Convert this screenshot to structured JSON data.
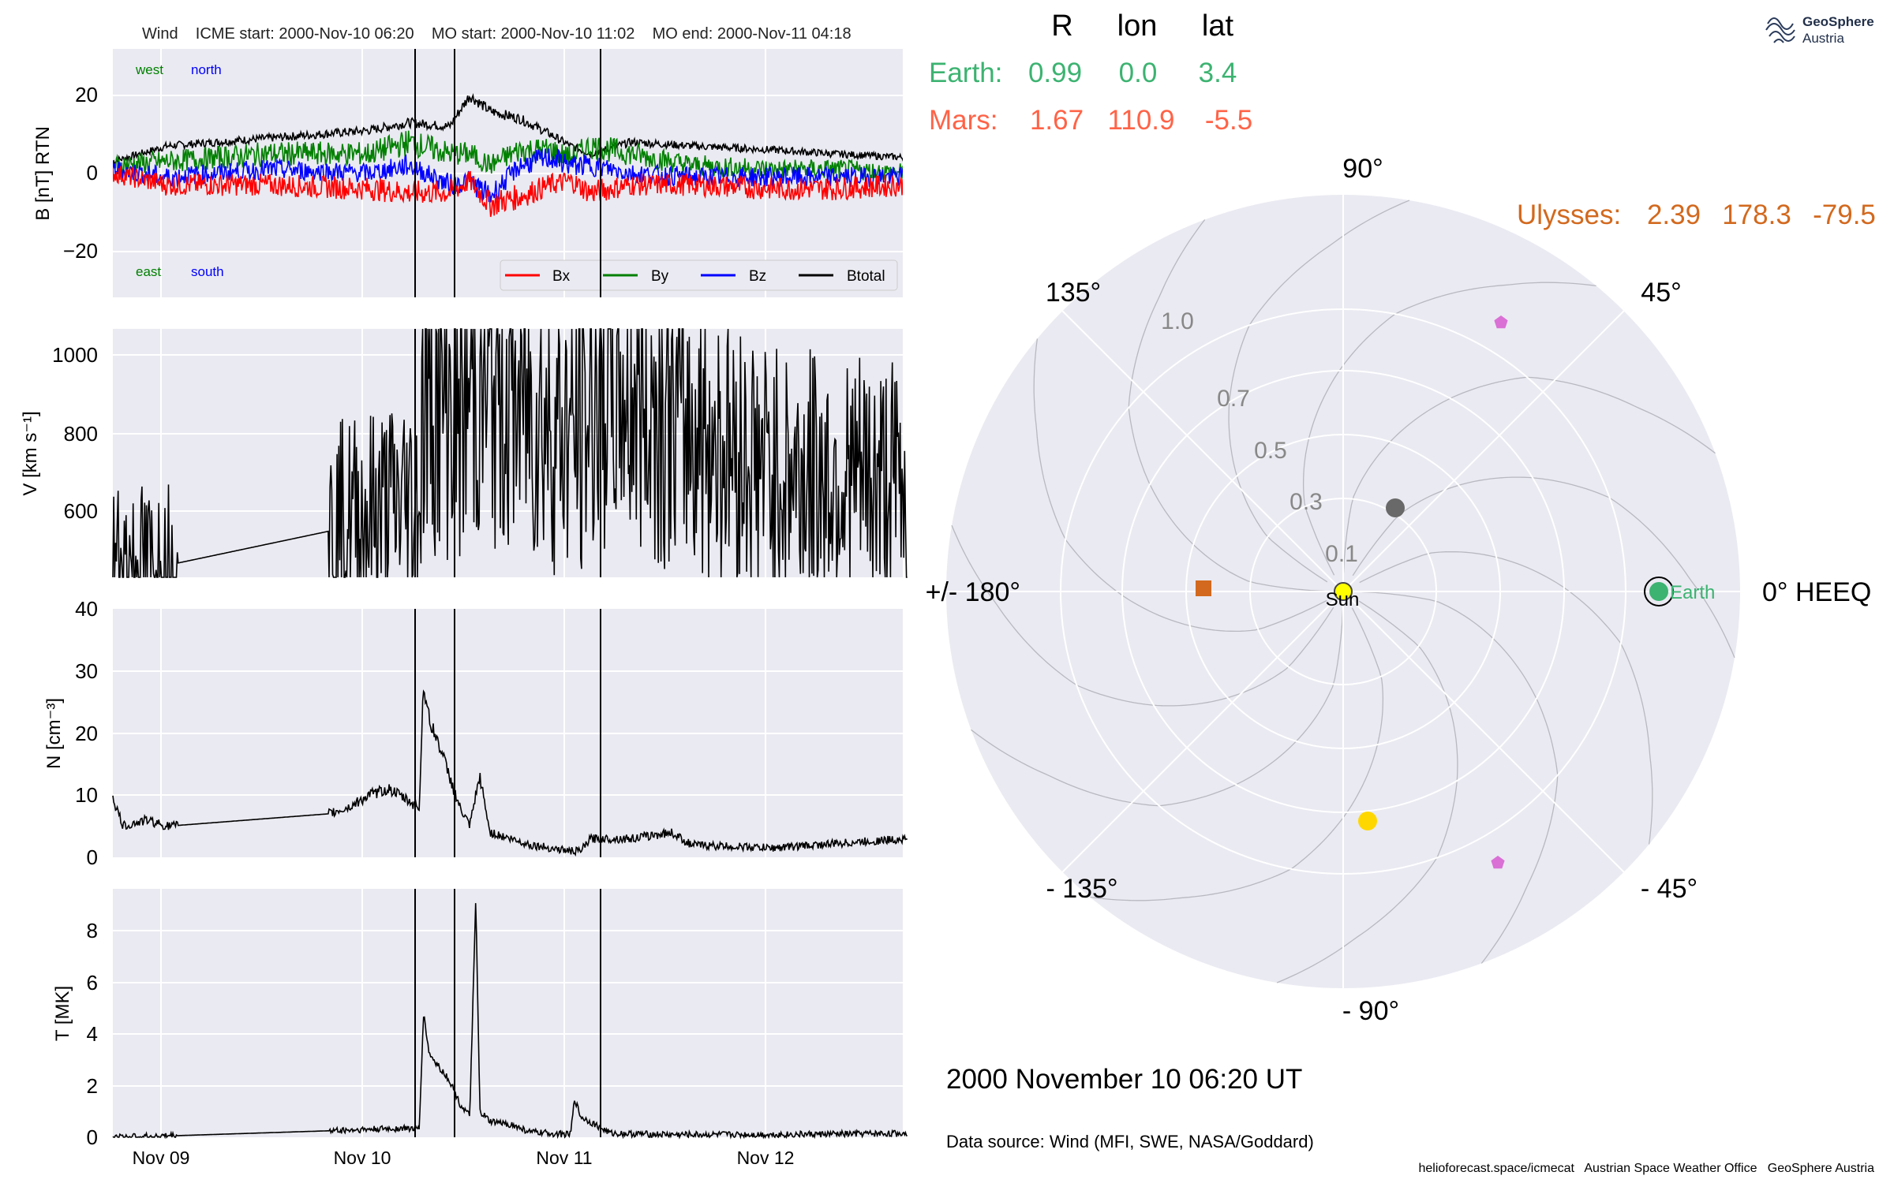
{
  "header": {
    "title": "Wind    ICME start: 2000-Nov-10 06:20    MO start: 2000-Nov-10 11:02    MO end: 2000-Nov-11 04:18"
  },
  "logo": {
    "line1": "GeoSphere",
    "line2": "Austria"
  },
  "footer": {
    "date": "2000 November 10  06:20 UT",
    "source": "Data source: Wind (MFI, SWE, NASA/Goddard)",
    "credits": "helioforecast.space/icmecat   Austrian Space Weather Office   GeoSphere Austria"
  },
  "colors": {
    "plot_bg": "#eaeaf2",
    "grid": "#ffffff",
    "bx": "#ff0000",
    "by": "#008000",
    "bz": "#0000ff",
    "btotal": "#000000",
    "earth": "#3cb371",
    "mars": "#ff6347",
    "ulysses": "#d2691e",
    "sun": "#ffff00",
    "venus": "#ffd700",
    "mercury": "#696969",
    "stereo": "#da70d6"
  },
  "chart_data": [
    {
      "type": "line",
      "panel": "magnetic-field",
      "ylabel": "B [nT] RTN",
      "ylim": [
        -32,
        32
      ],
      "yticks": [
        "20",
        "0",
        "−20"
      ],
      "xtick_labels": [
        "Nov 09",
        "Nov 10",
        "Nov 11",
        "Nov 12"
      ],
      "xlim_days": [
        -0.27,
        3.67
      ],
      "annotations": {
        "west": "west",
        "north": "north",
        "east": "east",
        "south": "south"
      },
      "legend": [
        "Bx",
        "By",
        "Bz",
        "Btotal"
      ],
      "legend_location": "lower-right",
      "event_lines": [
        "2000-11-10 06:20",
        "2000-11-10 11:02",
        "2000-11-11 04:18"
      ],
      "series": [
        {
          "name": "Btotal",
          "x": [
            -0.27,
            0,
            0.5,
            1.0,
            1.2,
            1.4,
            1.5,
            1.6,
            1.75,
            1.9,
            2.0,
            2.1,
            2.3,
            2.6,
            3.0,
            3.3,
            3.67
          ],
          "y": [
            3,
            7,
            9,
            11,
            13,
            12,
            20,
            16,
            14,
            10,
            7,
            5,
            8,
            7,
            6,
            5,
            4
          ]
        },
        {
          "name": "Bx",
          "x": [
            -0.27,
            0,
            0.5,
            1.0,
            1.2,
            1.4,
            1.5,
            1.6,
            1.75,
            1.9,
            2.0,
            2.1,
            2.3,
            2.6,
            3.0,
            3.3,
            3.67
          ],
          "y": [
            0,
            -3,
            -3,
            -4,
            -5,
            -5,
            -2,
            -8,
            -6,
            -3,
            -2,
            -5,
            -3,
            -3,
            -4,
            -4,
            -3
          ]
        },
        {
          "name": "By",
          "x": [
            -0.27,
            0,
            0.5,
            1.0,
            1.2,
            1.4,
            1.5,
            1.6,
            1.75,
            1.9,
            2.0,
            2.1,
            2.3,
            2.6,
            3.0,
            3.3,
            3.67
          ],
          "y": [
            2,
            3,
            5,
            5,
            8,
            5,
            5,
            2,
            6,
            6,
            4,
            7,
            5,
            2,
            1,
            1,
            0
          ]
        },
        {
          "name": "Bz",
          "x": [
            -0.27,
            0,
            0.5,
            1.0,
            1.2,
            1.4,
            1.5,
            1.6,
            1.75,
            1.9,
            2.0,
            2.1,
            2.3,
            2.6,
            3.0,
            3.3,
            3.67
          ],
          "y": [
            1,
            -1,
            1,
            0,
            2,
            -3,
            -2,
            -6,
            2,
            4,
            2,
            2,
            0,
            -1,
            -1,
            -1,
            -1
          ]
        }
      ]
    },
    {
      "type": "line",
      "panel": "velocity",
      "ylabel": "V [km s⁻¹]",
      "ylim": [
        440,
        1060
      ],
      "yticks": [
        "1000",
        "800",
        "600"
      ],
      "xtick_labels": [
        "Nov 09",
        "Nov 10",
        "Nov 11",
        "Nov 12"
      ],
      "series": [
        {
          "name": "V",
          "x": [
            -0.27,
            -0.1,
            0.0,
            0.8,
            0.9,
            1.1,
            1.25,
            1.27,
            1.3,
            1.45,
            1.5,
            1.6,
            1.75,
            1.9,
            2.05,
            2.15,
            2.3,
            2.5,
            2.75,
            3.0,
            3.3,
            3.67
          ],
          "y": [
            475,
            465,
            470,
            555,
            580,
            610,
            640,
            880,
            910,
            870,
            900,
            920,
            880,
            830,
            790,
            930,
            900,
            840,
            780,
            700,
            690,
            670
          ]
        }
      ]
    },
    {
      "type": "line",
      "panel": "density",
      "ylabel": "N [cm⁻³]",
      "ylim": [
        0,
        40
      ],
      "yticks": [
        "40",
        "30",
        "20",
        "10",
        "0"
      ],
      "xtick_labels": [
        "Nov 09",
        "Nov 10",
        "Nov 11",
        "Nov 12"
      ],
      "series": [
        {
          "name": "N",
          "x": [
            -0.27,
            -0.22,
            -0.1,
            0.0,
            0.8,
            0.9,
            1.0,
            1.1,
            1.25,
            1.27,
            1.3,
            1.35,
            1.45,
            1.5,
            1.55,
            1.6,
            1.8,
            2.0,
            2.05,
            2.1,
            2.3,
            2.5,
            2.6,
            3.0,
            3.67
          ],
          "y": [
            9.5,
            5,
            6,
            5,
            7,
            8,
            10,
            11,
            8,
            28,
            22,
            18,
            8,
            5,
            13,
            4,
            2,
            1,
            1,
            3,
            3,
            4,
            2,
            1.5,
            3
          ]
        }
      ]
    },
    {
      "type": "line",
      "panel": "temperature",
      "ylabel": "T [MK]",
      "ylim": [
        0,
        9.6
      ],
      "yticks": [
        "8",
        "6",
        "4",
        "2",
        "0"
      ],
      "xtick_labels": [
        "Nov 09",
        "Nov 10",
        "Nov 11",
        "Nov 12"
      ],
      "series": [
        {
          "name": "T",
          "x": [
            -0.27,
            0,
            0.8,
            1.0,
            1.2,
            1.25,
            1.27,
            1.3,
            1.4,
            1.45,
            1.5,
            1.53,
            1.55,
            1.6,
            1.7,
            1.8,
            2.0,
            2.02,
            2.05,
            2.2,
            2.5,
            3.0,
            3.67
          ],
          "y": [
            0,
            0.05,
            0.25,
            0.3,
            0.35,
            0.3,
            4.8,
            3.2,
            2.2,
            1.3,
            0.8,
            9.2,
            1.0,
            0.6,
            0.5,
            0.2,
            0.1,
            1.5,
            0.8,
            0.15,
            0.1,
            0.1,
            0.15
          ]
        }
      ]
    },
    {
      "type": "scatter",
      "panel": "polar-position",
      "coords": "HEEQ",
      "header": [
        "R",
        "lon",
        "lat"
      ],
      "radial_ticks": [
        "0.1",
        "0.3",
        "0.5",
        "0.7",
        "1.0"
      ],
      "angle_labels": [
        "90°",
        "45°",
        "0° HEEQ",
        "- 45°",
        "- 90°",
        "- 135°",
        "+/- 180°",
        "135°"
      ],
      "bodies": [
        {
          "name": "Earth",
          "R": 0.99,
          "lon": 0.0,
          "lat": 3.4,
          "label": "Earth",
          "table": [
            "Earth:",
            "0.99",
            "0.0",
            "3.4"
          ]
        },
        {
          "name": "Mars",
          "R": 1.67,
          "lon": 110.9,
          "lat": -5.5,
          "table": [
            "Mars:",
            "1.67",
            "110.9",
            "-5.5"
          ]
        },
        {
          "name": "Ulysses",
          "R": 2.39,
          "lon": 178.3,
          "lat": -79.5,
          "table": [
            "Ulysses:",
            "2.39",
            "178.3",
            "-79.5"
          ]
        },
        {
          "name": "Sun",
          "R": 0,
          "lon": 0,
          "label": "Sun"
        },
        {
          "R": 0.72,
          "lon": -84
        },
        {
          "R": 0.31,
          "lon": 44
        },
        {
          "R": 0.42,
          "lon": 177
        },
        {
          "R": 0.97,
          "lon": 64
        },
        {
          "R": 0.93,
          "lon": -64
        }
      ]
    }
  ]
}
